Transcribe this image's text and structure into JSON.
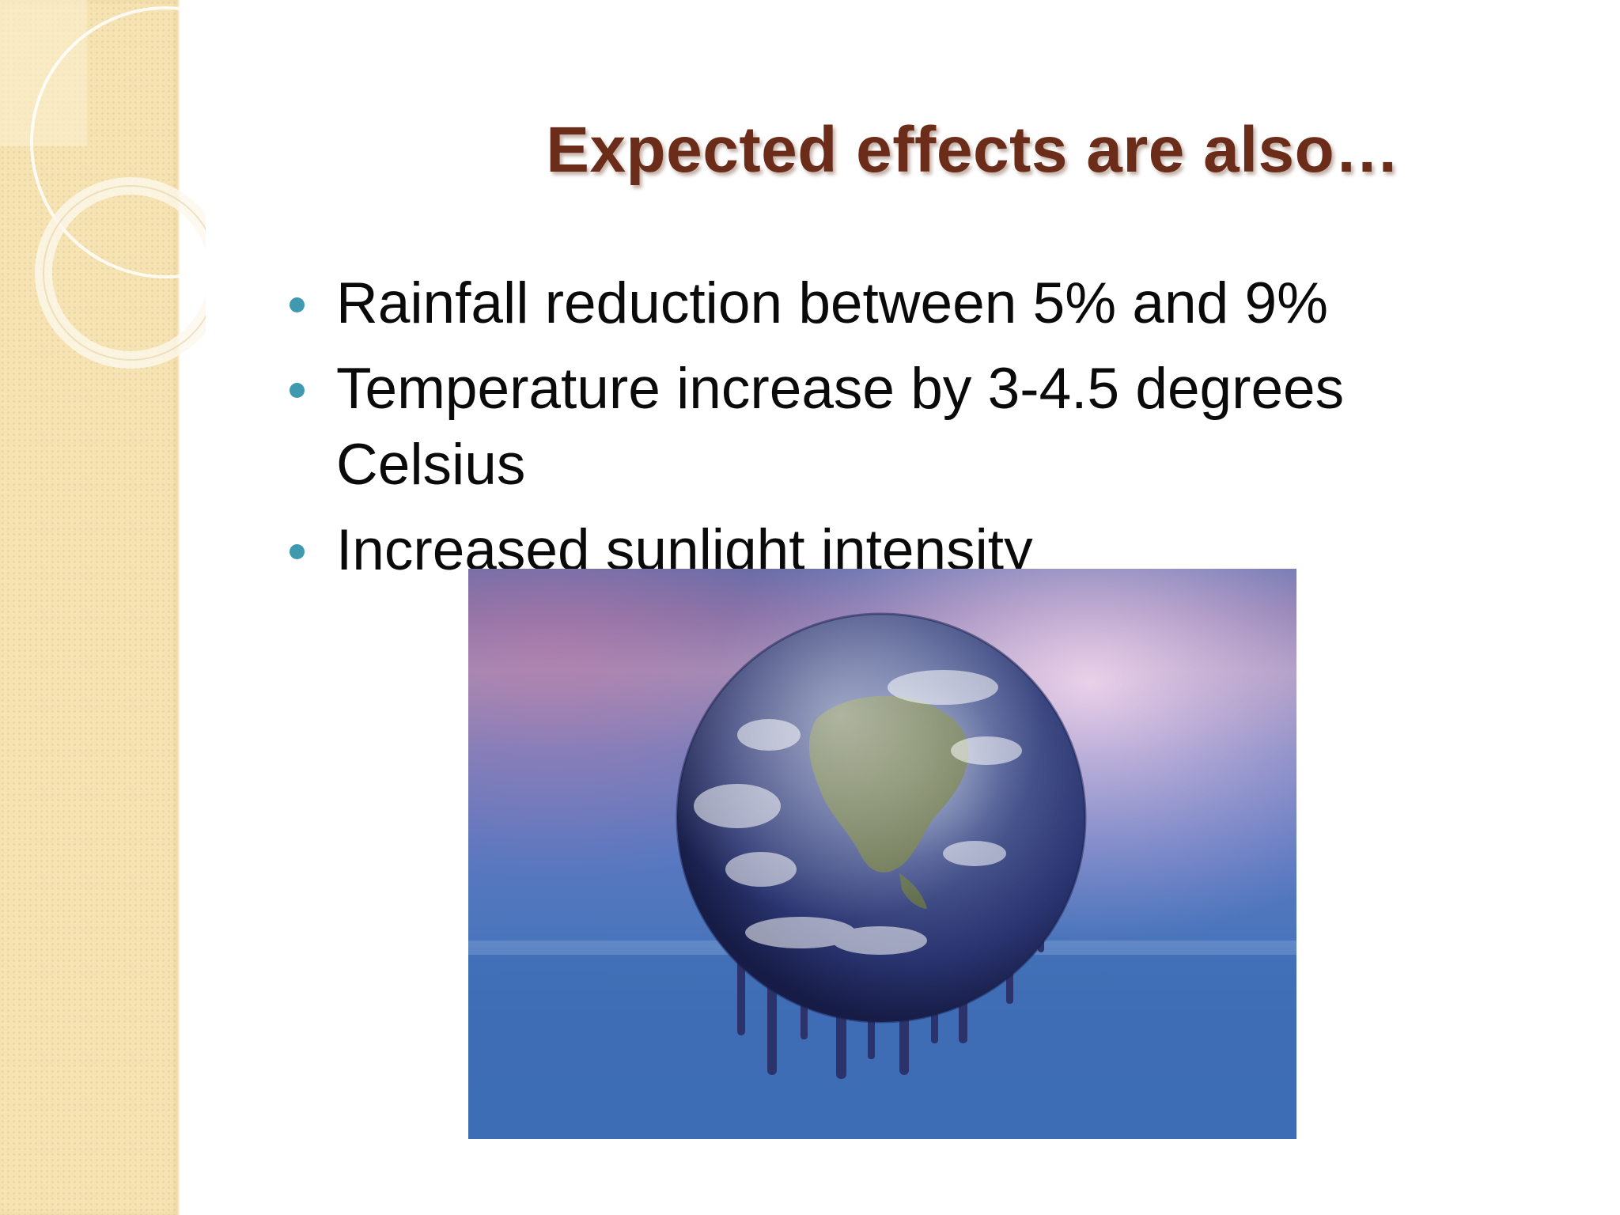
{
  "slide": {
    "title": "Expected effects are also…",
    "bullets": [
      "Rainfall reduction between 5% and 9%",
      "Temperature increase by 3-4.5 degrees Celsius",
      "Increased sunlight intensity"
    ]
  },
  "picture": {
    "icon": "melting-earth-image"
  },
  "colors": {
    "title": "#6b2d1a",
    "bullet": "#3f9ab0",
    "side_band": "#f6e3b3"
  }
}
